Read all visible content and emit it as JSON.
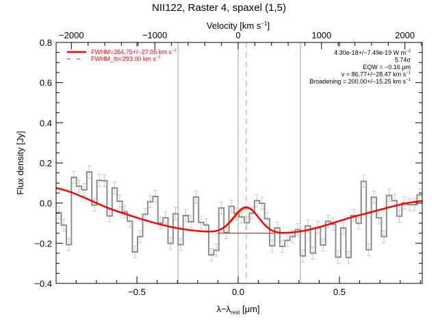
{
  "chart_data": {
    "type": "line",
    "title": "NII122, Raster 4, spaxel (1,5)",
    "xlabel": "λ−λ",
    "xlabel_sub": "rest",
    "xlabel_unit": " [μm]",
    "ylabel": "Flux density [Jy]",
    "x2label": "Velocity [km s",
    "x2label_sup": "−1",
    "x2label_end": "]",
    "xlim": [
      -0.899,
      0.909
    ],
    "ylim": [
      -0.4,
      0.8
    ],
    "x2lim": [
      -2183,
      2208
    ],
    "xticks": [
      -0.5,
      0.0,
      0.5
    ],
    "xtick_labels": [
      "−0.5",
      "0.0",
      "0.5"
    ],
    "yticks": [
      -0.4,
      -0.2,
      0.0,
      0.2,
      0.4,
      0.6,
      0.8
    ],
    "ytick_labels": [
      "−0.4",
      "−0.2",
      "0.0",
      "0.2",
      "0.4",
      "0.6",
      "0.8"
    ],
    "x2ticks": [
      -2000,
      -1000,
      0,
      1000,
      2000
    ],
    "x2tick_labels": [
      "−2000",
      "−1000",
      "0",
      "1000",
      "2000"
    ],
    "grid": false,
    "colors": {
      "data": "#8c8c8c",
      "errorbar": "#c8c8c8",
      "fit": "#ff0000",
      "fit_components": "#ff7f00",
      "marker_lines": "#a0a0a0"
    },
    "spectrum": {
      "style": "step",
      "x": [
        -0.886,
        -0.861,
        -0.836,
        -0.811,
        -0.786,
        -0.76,
        -0.735,
        -0.71,
        -0.685,
        -0.66,
        -0.635,
        -0.61,
        -0.585,
        -0.56,
        -0.535,
        -0.51,
        -0.484,
        -0.459,
        -0.434,
        -0.409,
        -0.384,
        -0.359,
        -0.334,
        -0.309,
        -0.284,
        -0.259,
        -0.233,
        -0.208,
        -0.183,
        -0.158,
        -0.133,
        -0.108,
        -0.083,
        -0.058,
        -0.033,
        -0.008,
        0.017,
        0.043,
        0.068,
        0.093,
        0.118,
        0.143,
        0.168,
        0.193,
        0.218,
        0.243,
        0.268,
        0.294,
        0.319,
        0.344,
        0.369,
        0.394,
        0.419,
        0.444,
        0.469,
        0.494,
        0.519,
        0.545,
        0.57,
        0.595,
        0.62,
        0.645,
        0.67,
        0.695,
        0.72,
        0.745,
        0.771,
        0.796,
        0.821,
        0.846,
        0.871,
        0.896
      ],
      "y": [
        -0.048,
        -0.11,
        -0.207,
        0.128,
        0.084,
        0.066,
        0.155,
        -0.01,
        0.113,
        0.111,
        -0.064,
        0.075,
        0.009,
        -0.044,
        -0.09,
        -0.243,
        -0.167,
        -0.056,
        0.007,
        0.033,
        -0.099,
        -0.073,
        -0.201,
        -0.053,
        -0.207,
        -0.062,
        -0.093,
        0.03,
        -0.096,
        -0.109,
        -0.258,
        -0.235,
        -0.024,
        -0.147,
        -0.016,
        -0.052,
        -0.069,
        -0.098,
        -0.05,
        0.012,
        -0.001,
        -0.078,
        -0.213,
        -0.124,
        -0.216,
        -0.186,
        -0.167,
        -0.132,
        -0.263,
        -0.114,
        -0.249,
        -0.122,
        -0.209,
        -0.091,
        -0.105,
        -0.269,
        -0.124,
        -0.271,
        -0.062,
        -0.101,
        0.109,
        -0.232,
        0.029,
        -0.073,
        -0.167,
        0.038,
        0.012,
        -0.065,
        0.001,
        -0.008,
        -0.008,
        0.041
      ],
      "error": 0.03
    },
    "continuum": {
      "x": [
        -0.9,
        -0.6,
        -0.3,
        0.0,
        0.3,
        0.6,
        0.9
      ],
      "y": [
        0.075,
        -0.04,
        -0.125,
        -0.15,
        -0.142,
        -0.06,
        0.01
      ]
    },
    "line_fit": {
      "center": 0.04,
      "amplitude": 0.13,
      "fwhm": 0.146,
      "baseline": -0.15
    },
    "vertical_lines": [
      -0.297,
      0.0,
      0.307
    ],
    "dashed_line": 0.04,
    "legend": {
      "placement": "top-left",
      "entries": [
        {
          "label": "FWHM=354.75+/−27.05 km s",
          "sup": "−1",
          "style": "solid"
        },
        {
          "label": "FWHM_th=293.00 km s",
          "sup": "−1",
          "style": "dashed"
        }
      ]
    },
    "annotations": [
      {
        "text": "4.30e-18+/−7.49e-19 W m",
        "sup": "−2"
      },
      {
        "text": "5.74σ",
        "sup": ""
      },
      {
        "text": "EQW = −0.16 μm",
        "sup": ""
      },
      {
        "text": "v = 86.77+/−28.47 km s",
        "sup": "−1"
      },
      {
        "text": "Broadening = 200.00+/−15.25 km s",
        "sup": "−1"
      }
    ]
  }
}
